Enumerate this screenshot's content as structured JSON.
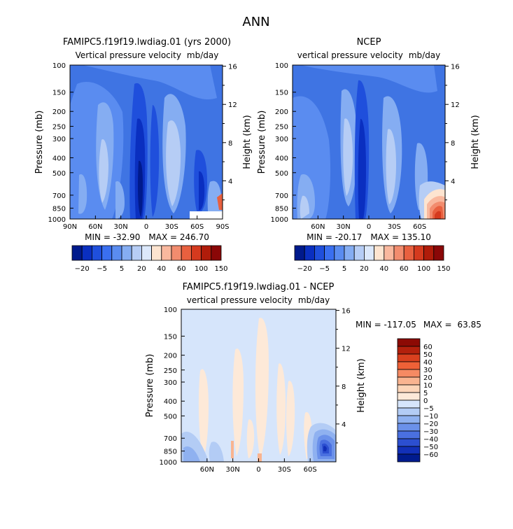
{
  "figure": {
    "title": "ANN"
  },
  "chart_data": [
    {
      "type": "heatmap",
      "title": "FAMIPC5.f19f19.lwdiag.01 (yrs 2000)",
      "subtitle": "Vertical pressure velocity",
      "units": "mb/day",
      "ylabel": "Pressure (mb)",
      "y2label": "Height (km)",
      "pressure_ticks": [
        "100",
        "150",
        "200",
        "250",
        "300",
        "400",
        "500",
        "700",
        "850",
        "1000"
      ],
      "height_ticks": [
        "4",
        "8",
        "12",
        "16"
      ],
      "lat_ticks": [
        "90N",
        "60N",
        "30N",
        "0",
        "30S",
        "60S",
        "90S"
      ],
      "min_label": "MIN = -32.90",
      "max_label": "MAX = 246.70",
      "levels": [
        "-20",
        "-5",
        "5",
        "20",
        "40",
        "60",
        "100",
        "150"
      ]
    },
    {
      "type": "heatmap",
      "title": "NCEP",
      "subtitle": "vertical pressure velocity",
      "units": "mb/day",
      "ylabel": "Pressure (mb)",
      "y2label": "Height (km)",
      "pressure_ticks": [
        "100",
        "150",
        "200",
        "250",
        "300",
        "400",
        "500",
        "700",
        "850",
        "1000"
      ],
      "height_ticks": [
        "4",
        "8",
        "12",
        "16"
      ],
      "lat_ticks": [
        "60N",
        "30N",
        "0",
        "30S",
        "60S"
      ],
      "min_label": "MIN = -20.17",
      "max_label": "MAX = 135.10",
      "levels": [
        "-20",
        "-5",
        "5",
        "20",
        "40",
        "60",
        "100",
        "150"
      ]
    },
    {
      "type": "heatmap",
      "title": "FAMIPC5.f19f19.lwdiag.01 - NCEP",
      "subtitle": "vertical pressure velocity",
      "units": "mb/day",
      "ylabel": "Pressure (mb)",
      "y2label": "Height (km)",
      "pressure_ticks": [
        "100",
        "150",
        "200",
        "250",
        "300",
        "400",
        "500",
        "700",
        "850",
        "1000"
      ],
      "height_ticks": [
        "4",
        "8",
        "12",
        "16"
      ],
      "lat_ticks": [
        "60N",
        "30N",
        "0",
        "30S",
        "60S"
      ],
      "min_label": "MIN = -117.05",
      "max_label": "MAX =",
      "max_value": "63.85",
      "levels": [
        "60",
        "50",
        "40",
        "30",
        "20",
        "10",
        "5",
        "0",
        "-5",
        "-10",
        "-20",
        "-30",
        "-40",
        "-50",
        "-60"
      ]
    }
  ],
  "colors": {
    "main_scale": [
      "#001a8c",
      "#0a2fc0",
      "#1f4fdc",
      "#3a6ff0",
      "#5a8cf0",
      "#85adf2",
      "#b6cdf5",
      "#dce8fb",
      "#fde4d0",
      "#f9b89e",
      "#f28c6e",
      "#e8603f",
      "#d53a1e",
      "#b01c0a",
      "#8a0707"
    ],
    "diff_scale": [
      "#8c0a04",
      "#b3200c",
      "#d9401e",
      "#ef6137",
      "#f58a63",
      "#f9b490",
      "#fcd5b8",
      "#fde9d8",
      "#d6e5fb",
      "#b3ccf5",
      "#8fb1f0",
      "#6b91ea",
      "#4a70e0",
      "#2c4fd0",
      "#1230b8",
      "#001b8e"
    ],
    "background_field": "#3f74e3",
    "diff_background": "#d6e5fb"
  }
}
